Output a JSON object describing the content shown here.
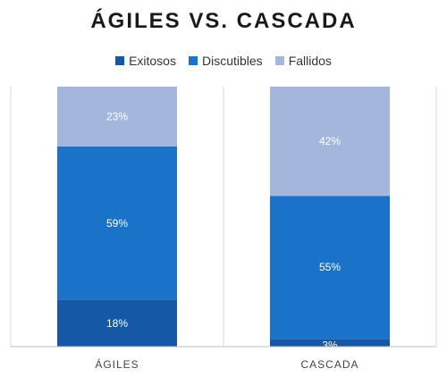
{
  "chart_data": {
    "type": "bar",
    "stacked": true,
    "title": "ÁGILES VS. CASCADA",
    "categories": [
      "ÁGILES",
      "CASCADA"
    ],
    "series": [
      {
        "name": "Exitosos",
        "values": [
          18,
          3
        ],
        "labels": [
          "18%",
          "3%"
        ],
        "color": "#1558a6"
      },
      {
        "name": "Discutibles",
        "values": [
          59,
          55
        ],
        "labels": [
          "59%",
          "55%"
        ],
        "color": "#1a72c9"
      },
      {
        "name": "Fallidos",
        "values": [
          23,
          42
        ],
        "labels": [
          "23%",
          "42%"
        ],
        "color": "#a5b6dc"
      }
    ],
    "ylim": [
      0,
      100
    ],
    "legend_position": "top",
    "grid": false
  }
}
